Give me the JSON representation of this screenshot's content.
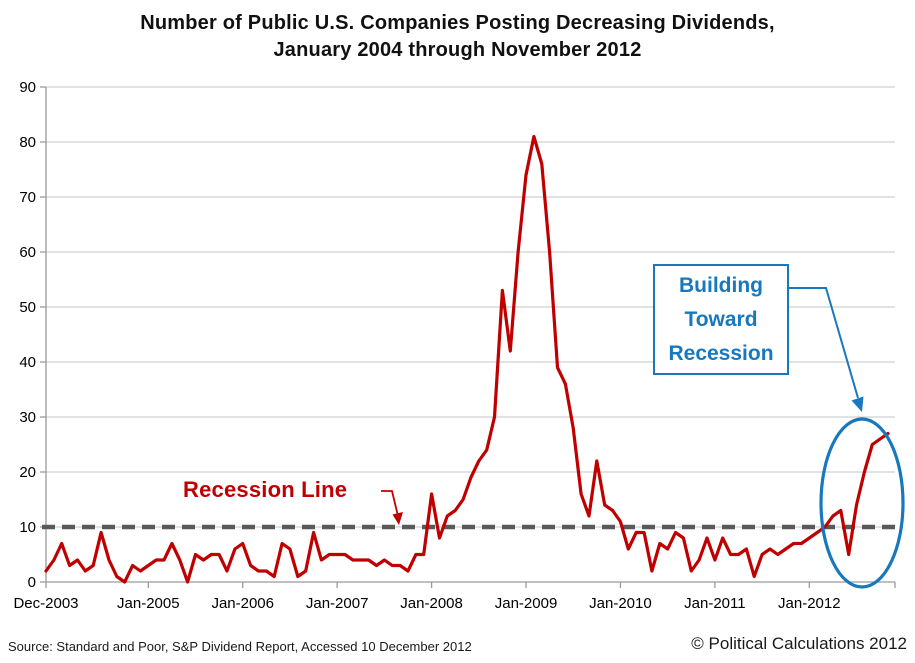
{
  "title": {
    "line1": "Number of Public U.S. Companies Posting Decreasing Dividends,",
    "line2": "January 2004 through November 2012"
  },
  "footer": {
    "source": "Source: Standard and Poor, S&P Dividend Report, Accessed 10 December 2012",
    "copyright": "© Political Calculations 2012"
  },
  "annotations": {
    "recession_line_label": "Recession Line",
    "building_lines": {
      "0": "Building",
      "1": "Toward",
      "2": "Recession"
    }
  },
  "colors": {
    "series_red": "#c00000",
    "annotation_red": "#c00000",
    "annotation_blue": "#1878be",
    "recession_dash": "#595959",
    "gridline": "#c6c6c6",
    "axis": "#9a9a9a",
    "text": "#000000"
  },
  "chart_data": {
    "type": "line",
    "title": "Number of Public U.S. Companies Posting Decreasing Dividends, January 2004 through November 2012",
    "xlabel": "",
    "ylabel": "",
    "ylim": [
      0,
      90
    ],
    "y_ticks": [
      0,
      10,
      20,
      30,
      40,
      50,
      60,
      70,
      80,
      90
    ],
    "grid": "horizontal",
    "legend_position": "none",
    "x_tick_labels": [
      "Dec-2003",
      "Jan-2005",
      "Jan-2006",
      "Jan-2007",
      "Jan-2008",
      "Jan-2009",
      "Jan-2010",
      "Jan-2011",
      "Jan-2012"
    ],
    "x_tick_month_indices": [
      0,
      13,
      25,
      37,
      49,
      61,
      73,
      85,
      97
    ],
    "start_month": "2003-12",
    "end_month": "2012-11",
    "recession_line": {
      "value": 10,
      "style": "dashed",
      "color": "#595959"
    },
    "series": [
      {
        "name": "Companies posting decreasing dividends",
        "color": "#c00000",
        "values": [
          2,
          4,
          7,
          3,
          4,
          2,
          3,
          9,
          4,
          1,
          0,
          3,
          2,
          3,
          4,
          4,
          7,
          4,
          0,
          5,
          4,
          5,
          5,
          2,
          6,
          7,
          3,
          2,
          2,
          1,
          7,
          6,
          1,
          2,
          9,
          4,
          5,
          5,
          5,
          4,
          4,
          4,
          3,
          4,
          3,
          3,
          2,
          5,
          5,
          16,
          8,
          12,
          13,
          15,
          19,
          22,
          24,
          30,
          53,
          42,
          60,
          74,
          81,
          76,
          60,
          39,
          36,
          28,
          16,
          12,
          22,
          14,
          13,
          11,
          6,
          9,
          9,
          2,
          7,
          6,
          9,
          8,
          2,
          4,
          8,
          4,
          8,
          5,
          5,
          6,
          1,
          5,
          6,
          5,
          6,
          7,
          7,
          8,
          9,
          10,
          12,
          13,
          5,
          14,
          20,
          25,
          26,
          27
        ]
      }
    ]
  }
}
